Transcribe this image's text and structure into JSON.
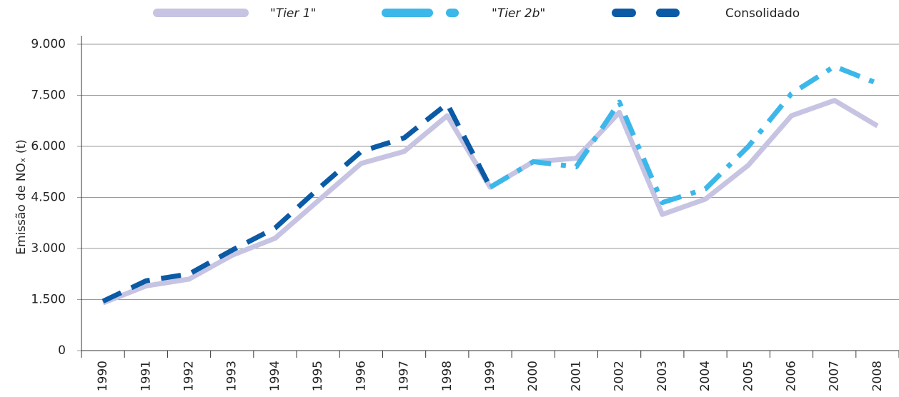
{
  "chart_data": {
    "type": "line",
    "y_label": "Emissão de NOₓ (t)",
    "categories": [
      "1990",
      "1991",
      "1992",
      "1993",
      "1994",
      "1995",
      "1996",
      "1997",
      "1998",
      "1999",
      "2000",
      "2001",
      "2002",
      "2003",
      "2004",
      "2005",
      "2006",
      "2007",
      "2008"
    ],
    "series": [
      {
        "name": "\"Tier 1\"",
        "color": "#c6c4e2",
        "style": "solid",
        "values": [
          1400,
          1900,
          2100,
          2800,
          3300,
          4400,
          5500,
          5850,
          6900,
          4800,
          5550,
          5650,
          7000,
          4000,
          4450,
          5450,
          6900,
          7350,
          6600
        ]
      },
      {
        "name": "\"Tier 2b\"",
        "color": "#3cb7ea",
        "style": "dashdot",
        "values": [
          null,
          null,
          null,
          null,
          null,
          null,
          null,
          null,
          null,
          4800,
          5550,
          5400,
          7300,
          4350,
          4750,
          6000,
          7550,
          8350,
          7850
        ]
      },
      {
        "name": "Consolidado",
        "color": "#0a5aa6",
        "style": "dashed",
        "values": [
          1450,
          2050,
          2250,
          2950,
          3600,
          4750,
          5850,
          6250,
          7250,
          4800,
          null,
          null,
          null,
          null,
          null,
          null,
          null,
          null,
          null
        ]
      }
    ],
    "ylim": [
      0,
      9000
    ],
    "yticks": [
      0,
      {
        "value": 1500,
        "label": "1.500"
      },
      {
        "value": 3000,
        "label": "3.000"
      },
      {
        "value": 4500,
        "label": "4.500"
      },
      {
        "value": 6000,
        "label": "6.000"
      },
      {
        "value": 7500,
        "label": "7.500"
      },
      {
        "value": 9000,
        "label": "9.000"
      }
    ],
    "grid": true
  }
}
